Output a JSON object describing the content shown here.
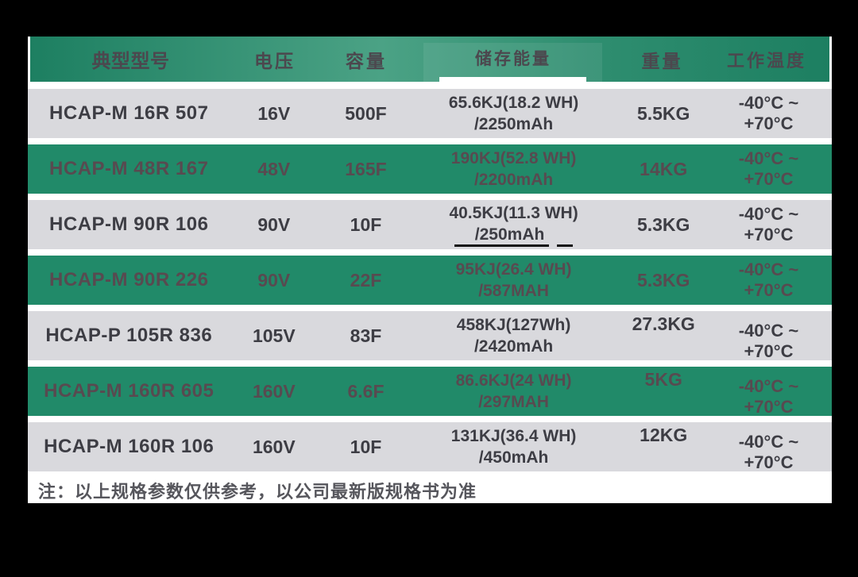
{
  "colors": {
    "canvas_bg": "#000000",
    "page_bg": "#ffffff",
    "header_green_dark": "#1d7f61",
    "header_green_light": "#4ba285",
    "row_green": "#218a69",
    "row_gray": "#d9d9dd",
    "header_text": "#4c474e",
    "text_on_gray": "#3d3d44",
    "text_on_green": "#584a50",
    "header_underline": "#ffffff"
  },
  "table": {
    "headers": [
      "典型型号",
      "电压",
      "容量",
      "储存能量",
      "重量",
      "工作温度"
    ],
    "rows": [
      {
        "model": "HCAP-M 16R 507",
        "voltage": "16V",
        "capacity": "500F",
        "energy_line1": "65.6KJ(18.2 WH)",
        "energy_line2": "/2250mAh",
        "weight": "5.5KG",
        "temperature": "-40°C ~ +70°C",
        "style": "gray"
      },
      {
        "model": "HCAP-M 48R 167",
        "voltage": "48V",
        "capacity": "165F",
        "energy_line1": "190KJ(52.8 WH)",
        "energy_line2": "/2200mAh",
        "weight": "14KG",
        "temperature": "-40°C ~ +70°C",
        "style": "green"
      },
      {
        "model": "HCAP-M 90R 106",
        "voltage": "90V",
        "capacity": "10F",
        "energy_line1": "40.5KJ(11.3 WH)",
        "energy_line2": "/250mAh",
        "weight": "5.3KG",
        "temperature": "-40°C ~ +70°C",
        "style": "gray",
        "energy_line2_underlined": true
      },
      {
        "model": "HCAP-M 90R 226",
        "voltage": "90V",
        "capacity": "22F",
        "energy_line1": "95KJ(26.4 WH)",
        "energy_line2": "/587MAH",
        "weight": "5.3KG",
        "temperature": "-40°C ~ +70°C",
        "style": "green"
      },
      {
        "model": "HCAP-P 105R 836",
        "voltage": "105V",
        "capacity": "83F",
        "energy_line1": "458KJ(127Wh)",
        "energy_line2": "/2420mAh",
        "weight": "27.3KG",
        "temperature": "-40°C ~ +70°C",
        "style": "gray"
      },
      {
        "model": "HCAP-M 160R 605",
        "voltage": "160V",
        "capacity": "6.6F",
        "energy_line1": "86.6KJ(24 WH)",
        "energy_line2": "/297MAH",
        "weight": "5KG",
        "temperature": "-40°C ~ +70°C",
        "style": "green"
      },
      {
        "model": "HCAP-M 160R 106",
        "voltage": "160V",
        "capacity": "10F",
        "energy_line1": "131KJ(36.4 WH)",
        "energy_line2": "/450mAh",
        "weight": "12KG",
        "temperature": "-40°C ~ +70°C",
        "style": "gray"
      }
    ]
  },
  "footnote": "注：以上规格参数仅供参考，以公司最新版规格书为准"
}
